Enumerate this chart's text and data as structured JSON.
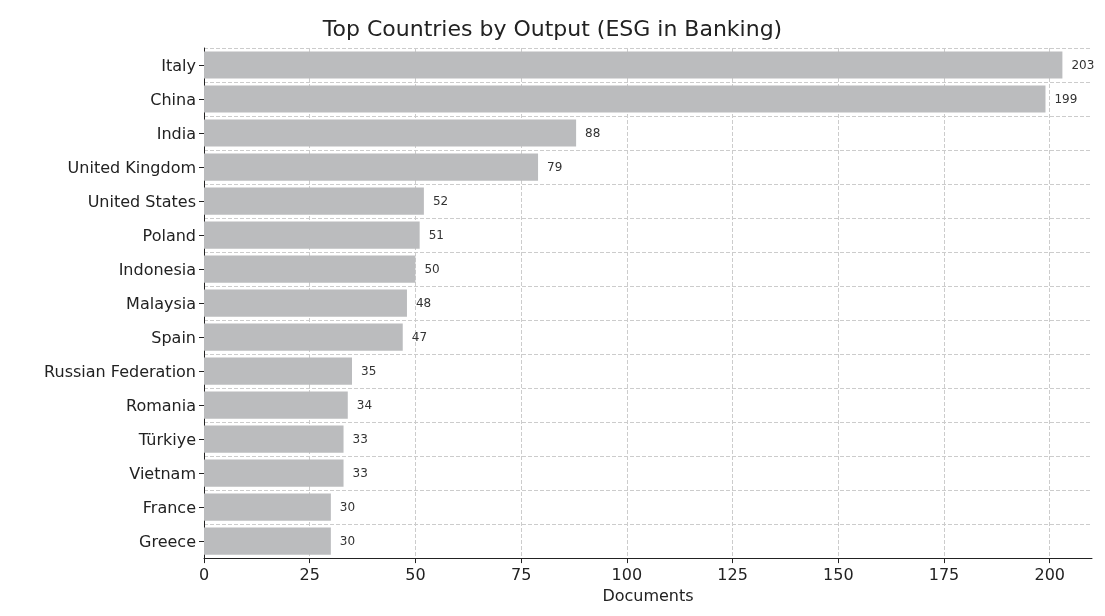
{
  "chart_data": {
    "type": "bar",
    "orientation": "horizontal",
    "title": "Top Countries by Output (ESG in Banking)",
    "xlabel": "Documents",
    "categories": [
      "Italy",
      "China",
      "India",
      "United Kingdom",
      "United States",
      "Poland",
      "Indonesia",
      "Malaysia",
      "Spain",
      "Russian Federation",
      "Romania",
      "Türkiye",
      "Vietnam",
      "France",
      "Greece"
    ],
    "values": [
      203,
      199,
      88,
      79,
      52,
      51,
      50,
      48,
      47,
      35,
      34,
      33,
      33,
      30,
      30
    ],
    "color": "#bbbcbe",
    "xlim": [
      0,
      210
    ],
    "xticks": [
      0,
      25,
      50,
      75,
      100,
      125,
      150,
      175,
      200
    ],
    "grid": true,
    "data_labels": true
  }
}
